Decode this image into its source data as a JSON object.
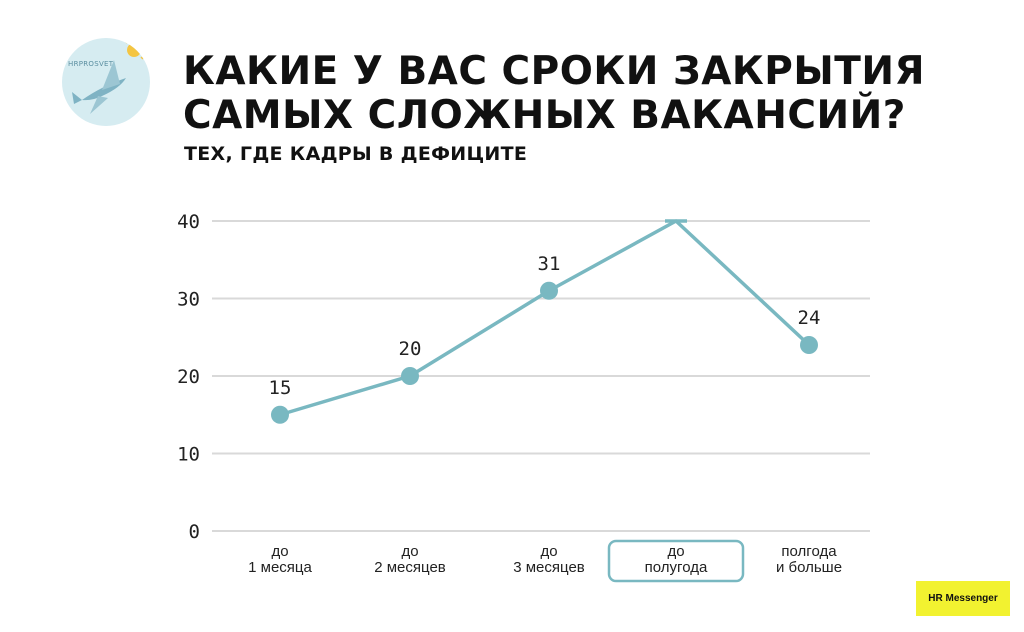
{
  "logo": {
    "text": "HRPROSVET",
    "icon": "flying-fish-with-sun-icon"
  },
  "title_lines": [
    "КАКИЕ У ВАС СРОКИ ЗАКРЫТИЯ",
    "САМЫХ СЛОЖНЫХ ВАКАНСИЙ?"
  ],
  "subtitle": "ТЕХ, ГДЕ КАДРЫ В ДЕФИЦИТЕ",
  "badge": "HR Messenger",
  "colors": {
    "line": "#79b8c1",
    "grid": "#d9d9d9",
    "highlight_border": "#79b8c1",
    "badge_bg": "#f2f230"
  },
  "chart_data": {
    "type": "line",
    "categories": [
      [
        "до",
        "1 месяца"
      ],
      [
        "до",
        "2 месяцев"
      ],
      [
        "до",
        "3 месяцев"
      ],
      [
        "до",
        "полугода"
      ],
      [
        "полгода",
        "и больше"
      ]
    ],
    "values": [
      15,
      20,
      31,
      40,
      24
    ],
    "data_labels": [
      "15",
      "20",
      "31",
      "",
      "24"
    ],
    "ylim": [
      0,
      40
    ],
    "yticks": [
      0,
      10,
      20,
      30,
      40
    ],
    "highlighted_category": 3,
    "grid": true,
    "legend": "none"
  }
}
